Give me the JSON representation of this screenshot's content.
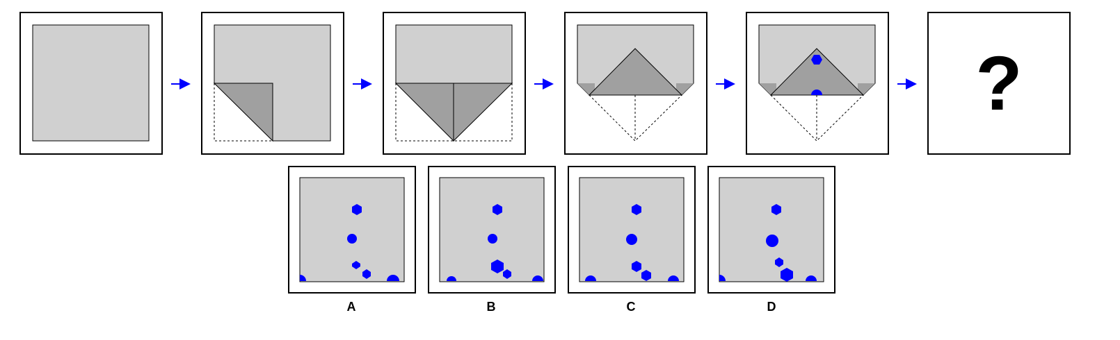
{
  "puzzle": {
    "question_mark": "?",
    "options": [
      {
        "label": "A"
      },
      {
        "label": "B"
      },
      {
        "label": "C"
      },
      {
        "label": "D"
      }
    ]
  },
  "colors": {
    "paper": "#d0d0d0",
    "fold": "#a0a0a0",
    "hole": "#0000ff",
    "arrow": "#0000ff",
    "frame": "#000000"
  }
}
